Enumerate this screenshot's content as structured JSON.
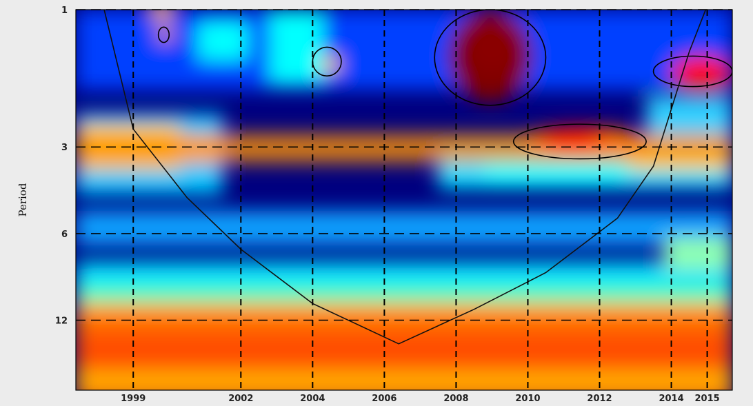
{
  "chart_data": {
    "type": "heatmap",
    "title": "",
    "xlabel": "",
    "ylabel": "Period",
    "x_scale": "linear",
    "y_scale": "log2",
    "xlim": [
      1997.4,
      2015.7
    ],
    "ylim": [
      1,
      21
    ],
    "x_tick_labels": [
      "1999",
      "2002",
      "2004",
      "2006",
      "2008",
      "2010",
      "2012",
      "2014",
      "2015"
    ],
    "x_ticks": [
      1999,
      2002,
      2004,
      2006,
      2008,
      2010,
      2012,
      2014,
      2015
    ],
    "y_tick_labels": [
      "1",
      "3",
      "6",
      "12"
    ],
    "y_ticks": [
      1,
      3,
      6,
      12
    ],
    "grid": "dashed black lines at tick positions",
    "colormap": "jet (blue = low power, red = high power)",
    "colormap_colors": [
      "#00007f",
      "#0000ff",
      "#00ffff",
      "#ffff00",
      "#ff0000",
      "#7f0000"
    ],
    "high_power_regions": [
      {
        "x": [
          2007.8,
          2010.1
        ],
        "period": [
          1,
          2.1
        ],
        "level": 1.0
      },
      {
        "x": [
          2009.8,
          2013.3
        ],
        "period": [
          2.55,
          3.2
        ],
        "level": 0.85
      },
      {
        "x": [
          2014.0,
          2015.7
        ],
        "period": [
          1.45,
          1.9
        ],
        "level": 0.85
      },
      {
        "x": [
          1997.4,
          2015.7
        ],
        "period": [
          11,
          21
        ],
        "level": 0.8
      },
      {
        "x": [
          1997.4,
          2015.7
        ],
        "period": [
          2.7,
          3.4
        ],
        "level": 0.65
      }
    ],
    "significance_contours": [
      {
        "x_range": [
          2007.4,
          2010.5
        ],
        "period_range": [
          1,
          2.15
        ]
      },
      {
        "x_range": [
          2009.6,
          2013.3
        ],
        "period_range": [
          2.5,
          3.3
        ]
      },
      {
        "x_range": [
          2013.5,
          2015.7
        ],
        "period_range": [
          1.45,
          1.85
        ]
      },
      {
        "x_range": [
          2004.0,
          2004.8
        ],
        "period_range": [
          1.35,
          1.7
        ]
      },
      {
        "x_range": [
          1999.7,
          2000.0
        ],
        "period_range": [
          1.15,
          1.3
        ]
      }
    ],
    "cone_of_influence": [
      [
        1998.0,
        0.8
      ],
      [
        1999.0,
        2.6
      ],
      [
        2000.5,
        4.5
      ],
      [
        2002.0,
        6.8
      ],
      [
        2004.0,
        10.5
      ],
      [
        2006.4,
        14.5
      ],
      [
        2008.5,
        11.0
      ],
      [
        2010.5,
        8.2
      ],
      [
        2012.5,
        5.3
      ],
      [
        2013.5,
        3.5
      ],
      [
        2014.5,
        1.4
      ],
      [
        2015.1,
        0.9
      ]
    ]
  }
}
